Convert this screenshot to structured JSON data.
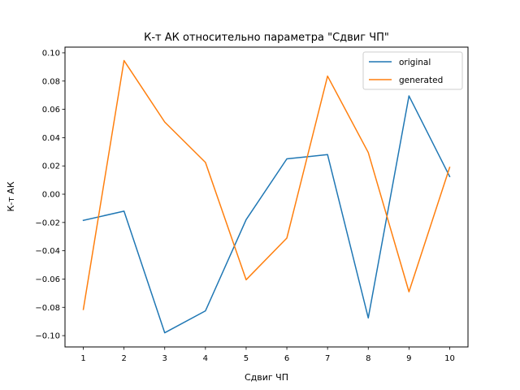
{
  "chart_data": {
    "type": "line",
    "title": "К-т АК относительно параметра \"Сдвиг ЧП\"",
    "xlabel": "Сдвиг ЧП",
    "ylabel": "К-т АК",
    "x": [
      1,
      2,
      3,
      4,
      5,
      6,
      7,
      8,
      9,
      10
    ],
    "xticks": [
      "1",
      "2",
      "3",
      "4",
      "5",
      "6",
      "7",
      "8",
      "9",
      "10"
    ],
    "yticks": [
      "−0.10",
      "−0.08",
      "−0.06",
      "−0.04",
      "−0.02",
      "0.00",
      "0.02",
      "0.04",
      "0.06",
      "0.08",
      "0.10"
    ],
    "ytick_values": [
      -0.1,
      -0.08,
      -0.06,
      -0.04,
      -0.02,
      0.0,
      0.02,
      0.04,
      0.06,
      0.08,
      0.1
    ],
    "xlim": [
      0.55,
      10.45
    ],
    "ylim": [
      -0.108,
      0.104
    ],
    "grid": false,
    "legend_position": "top-right",
    "series": [
      {
        "name": "original",
        "color": "#1f77b4",
        "values": [
          -0.0185,
          -0.012,
          -0.098,
          -0.0825,
          -0.018,
          0.025,
          0.028,
          -0.0875,
          0.0695,
          0.0125
        ]
      },
      {
        "name": "generated",
        "color": "#ff7f0e",
        "values": [
          -0.0815,
          0.0945,
          0.051,
          0.0225,
          -0.0605,
          -0.031,
          0.0835,
          0.0295,
          -0.069,
          0.019
        ]
      }
    ]
  }
}
